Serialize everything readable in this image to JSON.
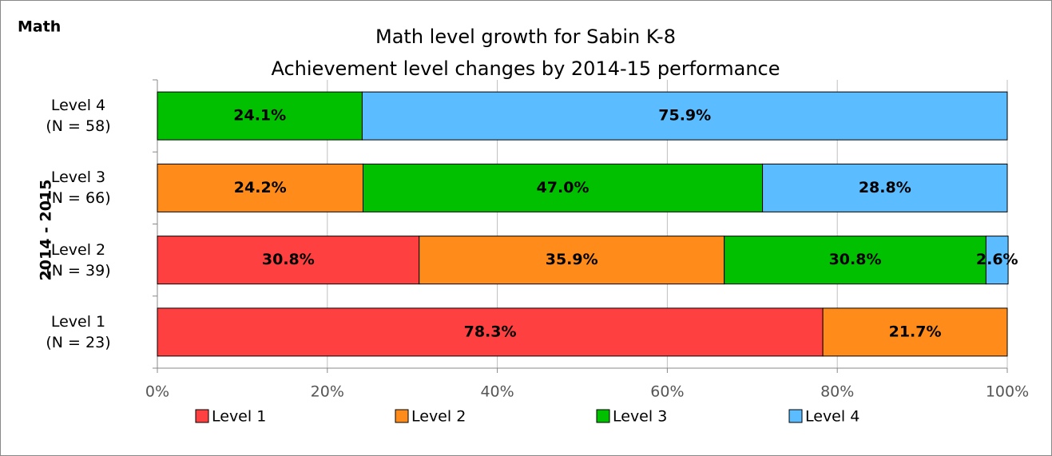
{
  "chart_data": {
    "type": "stacked_bar_horizontal",
    "corner_label": "Math",
    "title": "Math level growth for Sabin K-8",
    "subtitle": "Achievement level changes by 2014-15 performance",
    "y_axis_label": "2014 - 2015",
    "categories": [
      "Level 4\n(N = 58)",
      "Level 3\n(N = 66)",
      "Level 2\n(N = 39)",
      "Level 1\n(N = 23)"
    ],
    "series": [
      {
        "name": "Level 1",
        "color": "#ff4040",
        "values": [
          null,
          null,
          30.8,
          78.3
        ],
        "value_labels": [
          null,
          null,
          "30.8%",
          "78.3%"
        ]
      },
      {
        "name": "Level 2",
        "color": "#ff8c1a",
        "values": [
          null,
          24.2,
          35.9,
          21.7
        ],
        "value_labels": [
          null,
          "24.2%",
          "35.9%",
          "21.7%"
        ]
      },
      {
        "name": "Level 3",
        "color": "#00c000",
        "values": [
          24.1,
          47.0,
          30.8,
          null
        ],
        "value_labels": [
          "24.1%",
          "47.0%",
          "30.8%",
          null
        ]
      },
      {
        "name": "Level 4",
        "color": "#5bbcff",
        "values": [
          75.9,
          28.8,
          2.6,
          null
        ],
        "value_labels": [
          "75.9%",
          "28.8%",
          "2.6%",
          null
        ]
      }
    ],
    "xlim": [
      0,
      100
    ],
    "xticks": [
      {
        "value": 0,
        "label": "0%"
      },
      {
        "value": 20,
        "label": "20%"
      },
      {
        "value": 40,
        "label": "40%"
      },
      {
        "value": 60,
        "label": "60%"
      },
      {
        "value": 80,
        "label": "80%"
      },
      {
        "value": 100,
        "label": "100%"
      }
    ],
    "grid": true,
    "legend": "bottom"
  }
}
